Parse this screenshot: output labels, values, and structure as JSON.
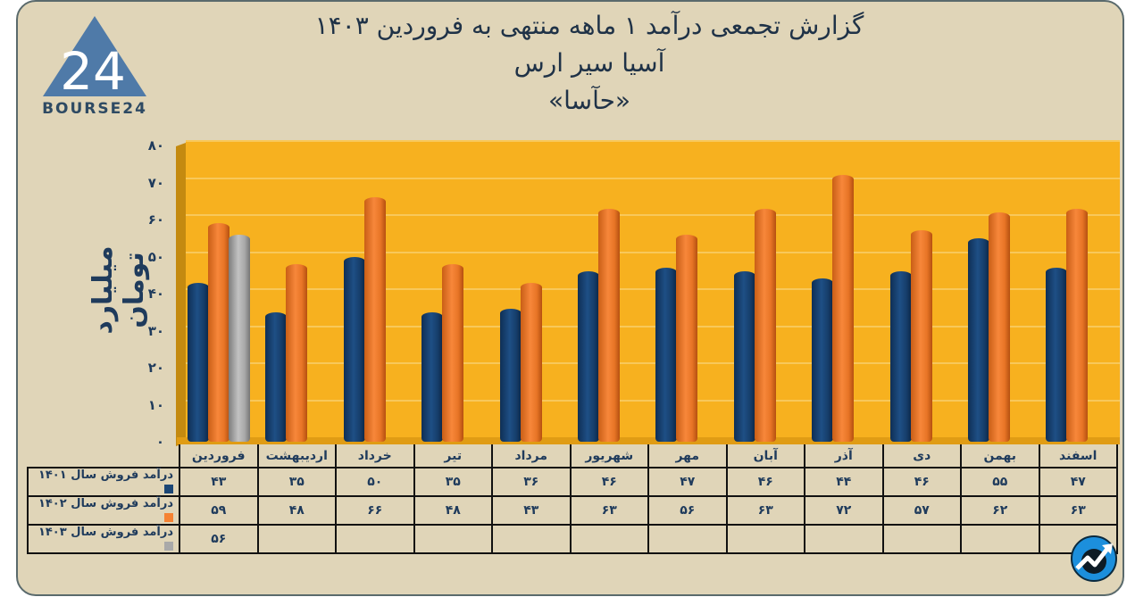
{
  "header": {
    "title_line1": "گزارش تجمعی درآمد ۱ ماهه منتهی به فروردین ۱۴۰۳",
    "title_line2": "آسیا سیر ارس",
    "title_line3": "«حآسا»"
  },
  "logo": {
    "text": "BOURSE24",
    "mark": "24"
  },
  "colors": {
    "background": "#e0d5b8",
    "plot": "#f7b11f",
    "series_1401": "#1b4675",
    "series_1402": "#f58232",
    "series_1403": "#a9a9a9",
    "text": "#1f3b5c"
  },
  "chart_data": {
    "type": "bar",
    "title": "گزارش تجمعی درآمد ۱ ماهه منتهی به فروردین ۱۴۰۳ - آسیا سیر ارس «حآسا»",
    "xlabel": "",
    "ylabel": "میلیارد تومان",
    "ylim": [
      0,
      80
    ],
    "yticks": [
      "۰",
      "۱۰",
      "۲۰",
      "۳۰",
      "۴۰",
      "۵۰",
      "۶۰",
      "۷۰",
      "۸۰"
    ],
    "grid": true,
    "legend_position": "table-left",
    "categories": [
      "فروردین",
      "اردیبهشت",
      "خرداد",
      "تیر",
      "مرداد",
      "شهریور",
      "مهر",
      "آبان",
      "آذر",
      "دی",
      "بهمن",
      "اسفند"
    ],
    "series": [
      {
        "name": "درآمد فروش سال ۱۴۰۱",
        "values": [
          43,
          35,
          50,
          35,
          36,
          46,
          47,
          46,
          44,
          46,
          55,
          47
        ]
      },
      {
        "name": "درآمد فروش سال ۱۴۰۲",
        "values": [
          59,
          48,
          66,
          48,
          43,
          63,
          56,
          63,
          72,
          57,
          62,
          63
        ]
      },
      {
        "name": "درآمد فروش سال ۱۴۰۳",
        "values": [
          56,
          null,
          null,
          null,
          null,
          null,
          null,
          null,
          null,
          null,
          null,
          null
        ]
      }
    ]
  },
  "table": {
    "months": [
      "فروردین",
      "اردیبهشت",
      "خرداد",
      "تیر",
      "مرداد",
      "شهریور",
      "مهر",
      "آبان",
      "آذر",
      "دی",
      "بهمن",
      "اسفند"
    ],
    "rows": [
      {
        "label": "درآمد فروش سال ۱۴۰۱",
        "values": [
          "۴۳",
          "۳۵",
          "۵۰",
          "۳۵",
          "۳۶",
          "۴۶",
          "۴۷",
          "۴۶",
          "۴۴",
          "۴۶",
          "۵۵",
          "۴۷"
        ]
      },
      {
        "label": "درآمد فروش سال ۱۴۰۲",
        "values": [
          "۵۹",
          "۴۸",
          "۶۶",
          "۴۸",
          "۴۳",
          "۶۳",
          "۵۶",
          "۶۳",
          "۷۲",
          "۵۷",
          "۶۲",
          "۶۳"
        ]
      },
      {
        "label": "درآمد فروش سال ۱۴۰۳",
        "values": [
          "۵۶",
          "",
          "",
          "",
          "",
          "",
          "",
          "",
          "",
          "",
          "",
          ""
        ]
      }
    ]
  }
}
